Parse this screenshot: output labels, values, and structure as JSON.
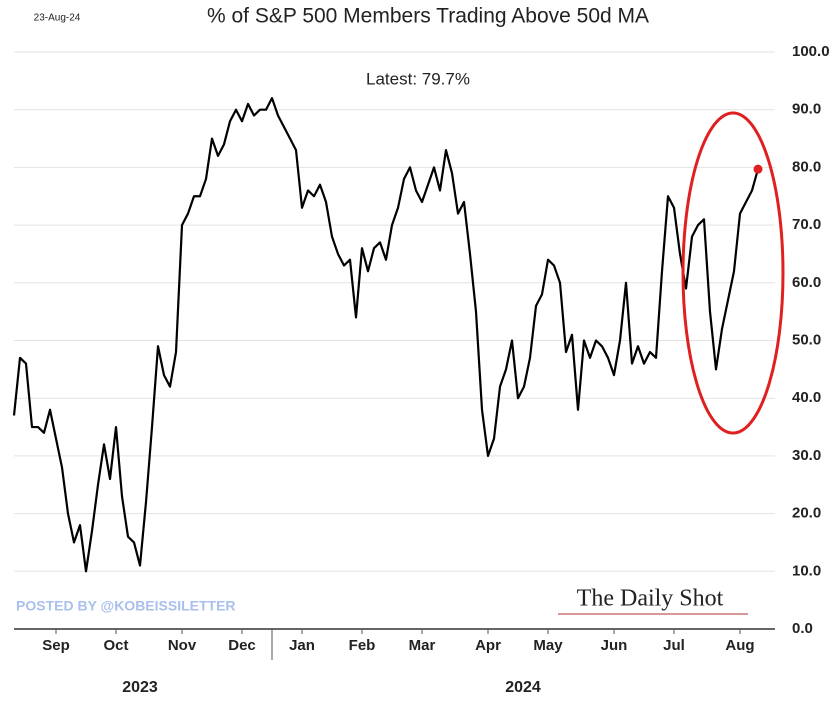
{
  "chart_data": {
    "type": "line",
    "title": "% of S&P 500 Members Trading Above 50d MA",
    "date_label": "23-Aug-24",
    "subtitle": "Latest:  79.7%",
    "annotations": [
      "2023",
      "2024",
      "POSTED BY @KOBEISSILETTER",
      "The Daily Shot"
    ],
    "categories": [
      null,
      null,
      null,
      null,
      null,
      null,
      null,
      "Sep",
      null,
      null,
      null,
      null,
      null,
      null,
      null,
      null,
      null,
      "Oct",
      null,
      null,
      null,
      null,
      null,
      null,
      null,
      null,
      null,
      null,
      "Nov",
      null,
      null,
      null,
      null,
      null,
      null,
      null,
      null,
      null,
      "Dec",
      null,
      null,
      null,
      null,
      null,
      null,
      null,
      null,
      null,
      "Jan",
      null,
      null,
      null,
      null,
      null,
      null,
      null,
      null,
      null,
      "Feb",
      null,
      null,
      null,
      null,
      null,
      null,
      null,
      null,
      null,
      "Mar",
      null,
      null,
      null,
      null,
      null,
      null,
      null,
      null,
      null,
      null,
      "Apr",
      null,
      null,
      null,
      null,
      null,
      null,
      null,
      null,
      null,
      "May",
      null,
      null,
      null,
      null,
      null,
      null,
      null,
      null,
      null,
      null,
      "Jun",
      null,
      null,
      null,
      null,
      null,
      null,
      null,
      null,
      null,
      "Jul",
      null,
      null,
      null,
      null,
      null,
      null,
      null,
      null,
      null,
      null,
      "Aug",
      null,
      null,
      null
    ],
    "series": [
      {
        "name": "% above 50d MA",
        "color": "#000000",
        "values": [
          37,
          47,
          46,
          35,
          35,
          34,
          38,
          33,
          28,
          20,
          15,
          18,
          10,
          17,
          25,
          32,
          26,
          35,
          23,
          16,
          15,
          11,
          22,
          35,
          49,
          44,
          42,
          48,
          70,
          72,
          75,
          75,
          78,
          85,
          82,
          84,
          88,
          90,
          88,
          91,
          89,
          90,
          90,
          92,
          89,
          87,
          85,
          83,
          73,
          76,
          75,
          77,
          74,
          68,
          65,
          63,
          64,
          54,
          66,
          62,
          66,
          67,
          64,
          70,
          73,
          78,
          80,
          76,
          74,
          77,
          80,
          76,
          83,
          79,
          72,
          74,
          65,
          55,
          38,
          30,
          33,
          42,
          45,
          50,
          40,
          42,
          47,
          56,
          58,
          64,
          63,
          60,
          48,
          51,
          38,
          50,
          47,
          50,
          49,
          47,
          44,
          50,
          60,
          46,
          49,
          46,
          48,
          47,
          62,
          75,
          73,
          65,
          59,
          68,
          70,
          71,
          55,
          45,
          52,
          57,
          62,
          72,
          74,
          76,
          79.7
        ]
      }
    ],
    "latest_marker_color": "#e02020",
    "ylim": [
      0,
      100
    ],
    "yticks": [
      {
        "value": 0,
        "label": "0.0"
      },
      {
        "value": 10,
        "label": "10.0"
      },
      {
        "value": 20,
        "label": "20.0"
      },
      {
        "value": 30,
        "label": "30.0"
      },
      {
        "value": 40,
        "label": "40.0"
      },
      {
        "value": 50,
        "label": "50.0"
      },
      {
        "value": 60,
        "label": "60.0"
      },
      {
        "value": 70,
        "label": "70.0"
      },
      {
        "value": 80,
        "label": "80.0"
      },
      {
        "value": 90,
        "label": "90.0"
      },
      {
        "value": 100,
        "label": "100.0"
      }
    ],
    "grid": true
  }
}
